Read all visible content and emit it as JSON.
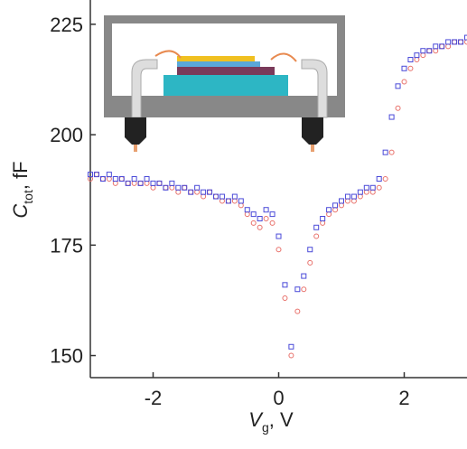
{
  "chart_data": {
    "type": "scatter",
    "xlabel": {
      "main": "V",
      "sub": "g",
      "rest": ", V"
    },
    "ylabel": {
      "main": "C",
      "sub": "tot",
      "rest": ", fF"
    },
    "x": [
      -3.0,
      -2.9,
      -2.8,
      -2.7,
      -2.6,
      -2.5,
      -2.4,
      -2.3,
      -2.2,
      -2.1,
      -2.0,
      -1.9,
      -1.8,
      -1.7,
      -1.6,
      -1.5,
      -1.4,
      -1.3,
      -1.2,
      -1.1,
      -1.0,
      -0.9,
      -0.8,
      -0.7,
      -0.6,
      -0.5,
      -0.4,
      -0.3,
      -0.2,
      -0.1,
      0.0,
      0.1,
      0.2,
      0.3,
      0.4,
      0.5,
      0.6,
      0.7,
      0.8,
      0.9,
      1.0,
      1.1,
      1.2,
      1.3,
      1.4,
      1.5,
      1.6,
      1.7,
      1.8,
      1.9,
      2.0,
      2.1,
      2.2,
      2.3,
      2.4,
      2.5,
      2.6,
      2.7,
      2.8,
      2.9,
      3.0
    ],
    "series": [
      {
        "marker": "circle",
        "color": "#e8706a",
        "values": [
          190,
          191,
          190,
          190,
          189,
          190,
          189,
          189,
          189,
          189,
          188,
          189,
          188,
          188,
          187,
          188,
          187,
          187,
          186,
          187,
          186,
          185,
          185,
          185,
          184,
          182,
          180,
          179,
          181,
          180,
          174,
          163,
          150,
          160,
          165,
          171,
          177,
          180,
          182,
          183,
          184,
          185,
          185,
          186,
          187,
          187,
          188,
          190,
          196,
          206,
          212,
          215,
          217,
          218,
          219,
          219,
          220,
          220,
          221,
          221,
          221
        ]
      },
      {
        "marker": "square",
        "color": "#4a4ad8",
        "values": [
          191,
          191,
          190,
          191,
          190,
          190,
          189,
          190,
          189,
          190,
          189,
          189,
          188,
          189,
          188,
          188,
          187,
          188,
          187,
          187,
          186,
          186,
          185,
          186,
          185,
          183,
          182,
          181,
          183,
          182,
          177,
          166,
          152,
          165,
          168,
          174,
          179,
          181,
          183,
          184,
          185,
          186,
          186,
          187,
          188,
          188,
          190,
          196,
          204,
          211,
          215,
          217,
          218,
          219,
          219,
          220,
          220,
          221,
          221,
          221,
          222
        ]
      }
    ],
    "xlim": [
      -3,
      3
    ],
    "ylim": [
      145,
      230.5
    ],
    "xticks": [
      -2,
      0,
      2
    ],
    "yticks": [
      150,
      175,
      200,
      225
    ]
  }
}
